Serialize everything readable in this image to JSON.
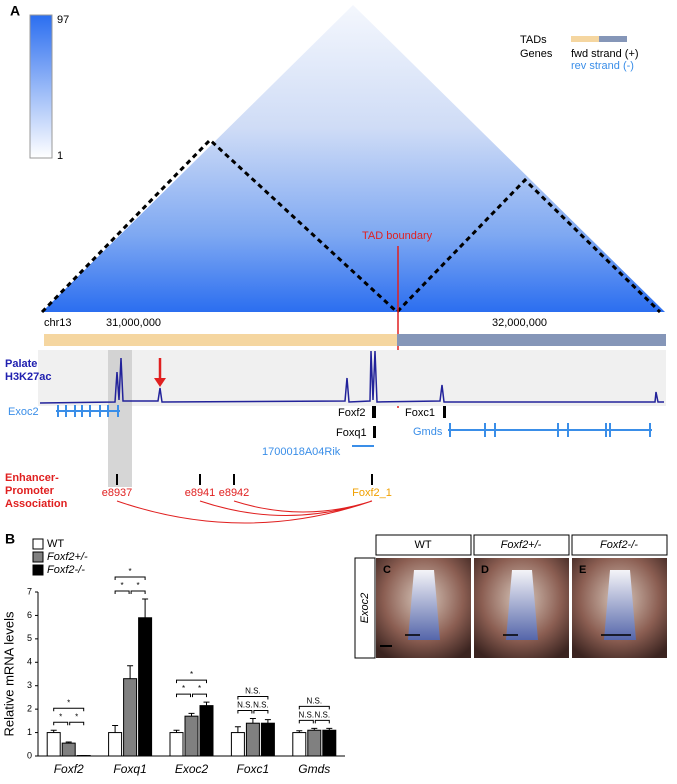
{
  "panel_a": {
    "label": "A",
    "colorbar": {
      "max": 97,
      "min": 1
    },
    "legend": {
      "tads": "TADs",
      "genes": "Genes",
      "fwd": "fwd strand (+)",
      "rev": "rev strand (-)"
    },
    "tad_boundary": "TAD boundary",
    "chrom": "chr13",
    "coords": [
      "31,000,000",
      "32,000,000"
    ],
    "track": [
      "Palate",
      "H3K27ac"
    ],
    "genes": [
      "Exoc2",
      "Foxf2",
      "Foxq1",
      "Foxc1",
      "Gmds",
      "1700018A04Rik"
    ],
    "association_title": [
      "Enhancer-",
      "Promoter",
      "Association"
    ],
    "elements": [
      "e8937",
      "e8941",
      "e8942",
      "Foxf2_1"
    ]
  },
  "chart_data": {
    "type": "bar",
    "panel_label": "B",
    "y_label": "Relative mRNA levels",
    "categories": [
      "Foxf2",
      "Foxq1",
      "Exoc2",
      "Foxc1",
      "Gmds"
    ],
    "series": [
      {
        "name": "WT",
        "color": "#ffffff",
        "values": [
          1,
          1,
          1,
          1,
          1
        ],
        "errors": [
          0.1,
          0.3,
          0.1,
          0.25,
          0.08
        ]
      },
      {
        "name": "Foxf2+/-",
        "color": "#808080",
        "values": [
          0.55,
          3.3,
          1.7,
          1.4,
          1.1
        ],
        "errors": [
          0.05,
          0.55,
          0.12,
          0.2,
          0.08
        ]
      },
      {
        "name": "Foxf2-/-",
        "color": "#000000",
        "values": [
          0.02,
          5.9,
          2.15,
          1.4,
          1.1
        ],
        "errors": [
          0,
          0.8,
          0.15,
          0.15,
          0.08
        ]
      }
    ],
    "significance": [
      [
        "*",
        "*",
        "*"
      ],
      [
        "*",
        "*",
        "*"
      ],
      [
        "*",
        "*",
        "*"
      ],
      [
        "N.S.",
        "N.S.",
        "N.S."
      ],
      [
        "N.S.",
        "N.S.",
        "N.S."
      ]
    ],
    "ylim": [
      0,
      7
    ],
    "yticks": [
      0,
      1,
      2,
      3,
      4,
      5,
      6,
      7
    ]
  },
  "panel_c": {
    "genotypes": [
      "WT",
      "Foxf2+/-",
      "Foxf2-/-"
    ],
    "probe": "Exoc2",
    "labels": [
      "C",
      "D",
      "E"
    ]
  }
}
